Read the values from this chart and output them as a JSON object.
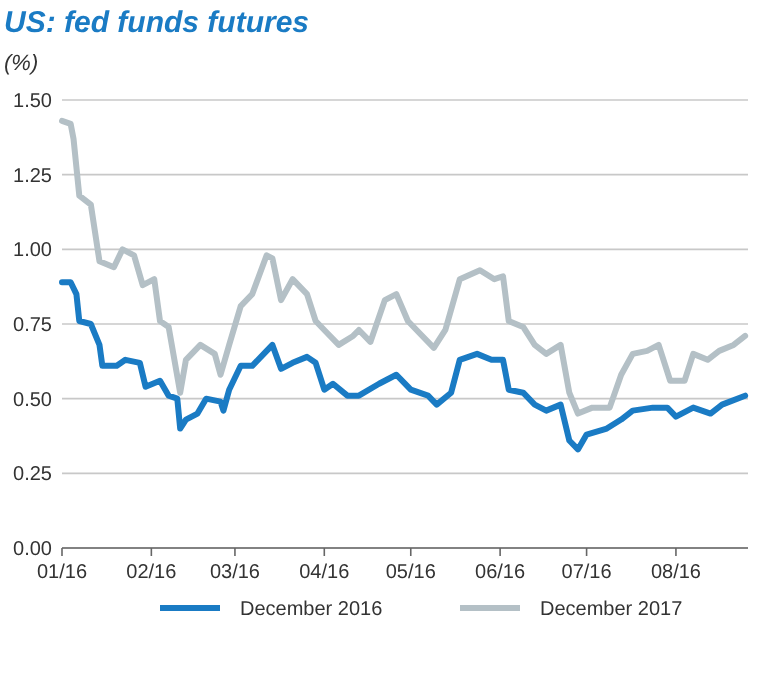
{
  "chart_data": {
    "type": "line",
    "title": "US: fed funds futures",
    "ylabel": "(%)",
    "xlim": [
      "2016-01-01",
      "2016-08-26"
    ],
    "xticks": [
      {
        "value": "2016-01-01",
        "label": "01/16"
      },
      {
        "value": "2016-02-01",
        "label": "02/16"
      },
      {
        "value": "2016-03-01",
        "label": "03/16"
      },
      {
        "value": "2016-04-01",
        "label": "04/16"
      },
      {
        "value": "2016-05-01",
        "label": "05/16"
      },
      {
        "value": "2016-06-01",
        "label": "06/16"
      },
      {
        "value": "2016-07-01",
        "label": "07/16"
      },
      {
        "value": "2016-08-01",
        "label": "08/16"
      }
    ],
    "ylim": [
      0,
      1.5
    ],
    "yticks": [
      {
        "value": 0,
        "label": "0.00"
      },
      {
        "value": 0.25,
        "label": "0.25"
      },
      {
        "value": 0.5,
        "label": "0.50"
      },
      {
        "value": 0.75,
        "label": "0.75"
      },
      {
        "value": 1,
        "label": "1.00"
      },
      {
        "value": 1.25,
        "label": "1.25"
      },
      {
        "value": 1.5,
        "label": "1.50"
      }
    ],
    "grid": "y",
    "legend": "bottom",
    "line_style": "solid",
    "series": [
      {
        "name": "December 2016",
        "color": "#1a7bc4",
        "x": [
          "2016-01-01",
          "2016-01-04",
          "2016-01-06",
          "2016-01-07",
          "2016-01-11",
          "2016-01-14",
          "2016-01-15",
          "2016-01-20",
          "2016-01-23",
          "2016-01-28",
          "2016-01-30",
          "2016-02-04",
          "2016-02-07",
          "2016-02-10",
          "2016-02-11",
          "2016-02-13",
          "2016-02-17",
          "2016-02-20",
          "2016-02-25",
          "2016-02-26",
          "2016-02-28",
          "2016-03-03",
          "2016-03-07",
          "2016-03-11",
          "2016-03-14",
          "2016-03-17",
          "2016-03-21",
          "2016-03-26",
          "2016-03-29",
          "2016-04-01",
          "2016-04-04",
          "2016-04-09",
          "2016-04-13",
          "2016-04-20",
          "2016-04-26",
          "2016-05-01",
          "2016-05-07",
          "2016-05-10",
          "2016-05-15",
          "2016-05-18",
          "2016-05-24",
          "2016-05-29",
          "2016-06-02",
          "2016-06-04",
          "2016-06-09",
          "2016-06-13",
          "2016-06-17",
          "2016-06-22",
          "2016-06-25",
          "2016-06-28",
          "2016-07-01",
          "2016-07-08",
          "2016-07-13",
          "2016-07-17",
          "2016-07-24",
          "2016-07-29",
          "2016-08-01",
          "2016-08-07",
          "2016-08-13",
          "2016-08-17",
          "2016-08-25"
        ],
        "values": [
          0.89,
          0.89,
          0.85,
          0.76,
          0.75,
          0.68,
          0.61,
          0.61,
          0.63,
          0.62,
          0.54,
          0.56,
          0.51,
          0.5,
          0.4,
          0.43,
          0.45,
          0.5,
          0.49,
          0.46,
          0.53,
          0.61,
          0.61,
          0.65,
          0.68,
          0.6,
          0.62,
          0.64,
          0.62,
          0.53,
          0.55,
          0.51,
          0.51,
          0.55,
          0.58,
          0.53,
          0.51,
          0.48,
          0.52,
          0.63,
          0.65,
          0.63,
          0.63,
          0.53,
          0.52,
          0.48,
          0.46,
          0.48,
          0.36,
          0.33,
          0.38,
          0.4,
          0.43,
          0.46,
          0.47,
          0.47,
          0.44,
          0.47,
          0.45,
          0.48,
          0.51
        ]
      },
      {
        "name": "December 2017",
        "color": "#b4c0c6",
        "x": [
          "2016-01-01",
          "2016-01-04",
          "2016-01-05",
          "2016-01-07",
          "2016-01-11",
          "2016-01-14",
          "2016-01-19",
          "2016-01-22",
          "2016-01-26",
          "2016-01-29",
          "2016-02-02",
          "2016-02-04",
          "2016-02-07",
          "2016-02-11",
          "2016-02-13",
          "2016-02-18",
          "2016-02-23",
          "2016-02-25",
          "2016-02-28",
          "2016-03-03",
          "2016-03-07",
          "2016-03-12",
          "2016-03-14",
          "2016-03-17",
          "2016-03-21",
          "2016-03-26",
          "2016-03-29",
          "2016-04-02",
          "2016-04-06",
          "2016-04-11",
          "2016-04-13",
          "2016-04-17",
          "2016-04-22",
          "2016-04-26",
          "2016-04-30",
          "2016-05-04",
          "2016-05-09",
          "2016-05-13",
          "2016-05-18",
          "2016-05-25",
          "2016-05-30",
          "2016-06-02",
          "2016-06-04",
          "2016-06-09",
          "2016-06-13",
          "2016-06-17",
          "2016-06-22",
          "2016-06-25",
          "2016-06-28",
          "2016-07-03",
          "2016-07-09",
          "2016-07-13",
          "2016-07-17",
          "2016-07-22",
          "2016-07-26",
          "2016-07-30",
          "2016-08-04",
          "2016-08-07",
          "2016-08-12",
          "2016-08-16",
          "2016-08-21",
          "2016-08-25"
        ],
        "values": [
          1.43,
          1.42,
          1.37,
          1.18,
          1.15,
          0.96,
          0.94,
          1.0,
          0.98,
          0.88,
          0.9,
          0.76,
          0.74,
          0.52,
          0.63,
          0.68,
          0.65,
          0.58,
          0.68,
          0.81,
          0.85,
          0.98,
          0.97,
          0.83,
          0.9,
          0.85,
          0.76,
          0.72,
          0.68,
          0.71,
          0.73,
          0.69,
          0.83,
          0.85,
          0.76,
          0.72,
          0.67,
          0.73,
          0.9,
          0.93,
          0.9,
          0.91,
          0.76,
          0.74,
          0.68,
          0.65,
          0.68,
          0.52,
          0.45,
          0.47,
          0.47,
          0.58,
          0.65,
          0.66,
          0.68,
          0.56,
          0.56,
          0.65,
          0.63,
          0.66,
          0.68,
          0.71
        ]
      }
    ]
  }
}
